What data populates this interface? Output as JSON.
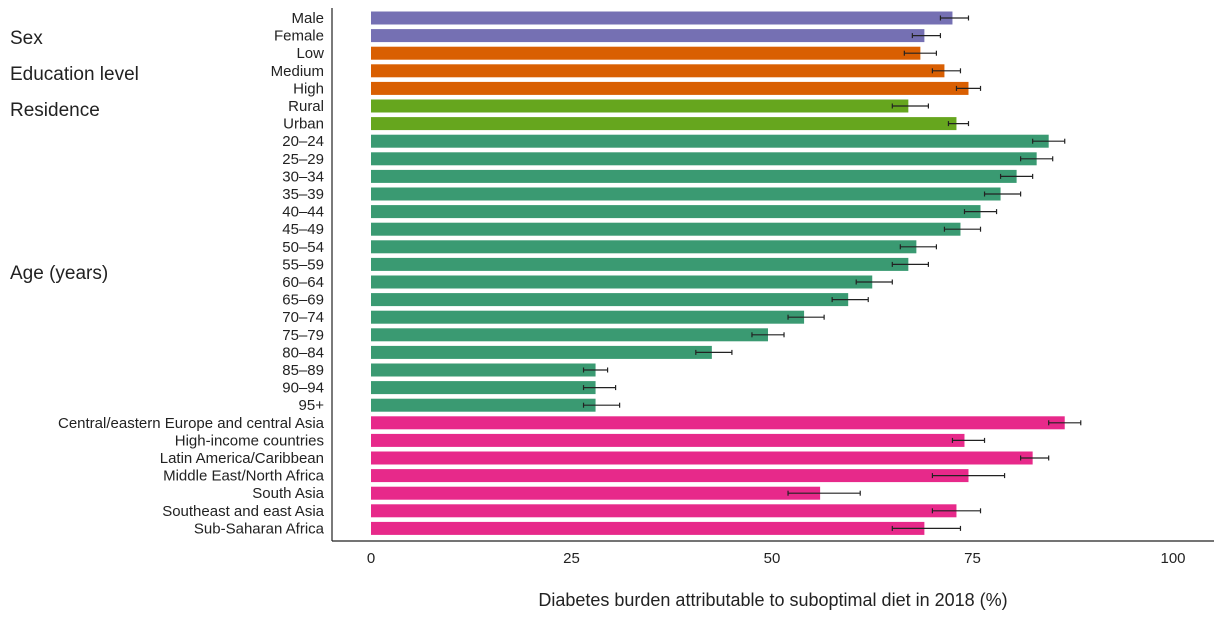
{
  "chart_data": {
    "type": "bar",
    "orientation": "horizontal",
    "xlabel": "Diabetes burden attributable to suboptimal diet in 2018 (%)",
    "xlim": [
      0,
      100
    ],
    "xticks": [
      0,
      25,
      50,
      75,
      100
    ],
    "grid": false,
    "groups": [
      {
        "label": "Sex",
        "color": "#7570b3",
        "items": [
          {
            "category": "Male",
            "value": 72.5,
            "err_low": 71.0,
            "err_high": 74.5
          },
          {
            "category": "Female",
            "value": 69.0,
            "err_low": 67.5,
            "err_high": 71.0
          }
        ]
      },
      {
        "label": "Education level",
        "color": "#d95f02",
        "items": [
          {
            "category": "Low",
            "value": 68.5,
            "err_low": 66.5,
            "err_high": 70.5
          },
          {
            "category": "Medium",
            "value": 71.5,
            "err_low": 70.0,
            "err_high": 73.5
          },
          {
            "category": "High",
            "value": 74.5,
            "err_low": 73.0,
            "err_high": 76.0
          }
        ]
      },
      {
        "label": "Residence",
        "color": "#66a61e",
        "items": [
          {
            "category": "Rural",
            "value": 67.0,
            "err_low": 65.0,
            "err_high": 69.5
          },
          {
            "category": "Urban",
            "value": 73.0,
            "err_low": 72.0,
            "err_high": 74.5
          }
        ]
      },
      {
        "label": "Age (years)",
        "color": "#3a9a72",
        "items": [
          {
            "category": "20–24",
            "value": 84.5,
            "err_low": 82.5,
            "err_high": 86.5
          },
          {
            "category": "25–29",
            "value": 83.0,
            "err_low": 81.0,
            "err_high": 85.0
          },
          {
            "category": "30–34",
            "value": 80.5,
            "err_low": 78.5,
            "err_high": 82.5
          },
          {
            "category": "35–39",
            "value": 78.5,
            "err_low": 76.5,
            "err_high": 81.0
          },
          {
            "category": "40–44",
            "value": 76.0,
            "err_low": 74.0,
            "err_high": 78.0
          },
          {
            "category": "45–49",
            "value": 73.5,
            "err_low": 71.5,
            "err_high": 76.0
          },
          {
            "category": "50–54",
            "value": 68.0,
            "err_low": 66.0,
            "err_high": 70.5
          },
          {
            "category": "55–59",
            "value": 67.0,
            "err_low": 65.0,
            "err_high": 69.5
          },
          {
            "category": "60–64",
            "value": 62.5,
            "err_low": 60.5,
            "err_high": 65.0
          },
          {
            "category": "65–69",
            "value": 59.5,
            "err_low": 57.5,
            "err_high": 62.0
          },
          {
            "category": "70–74",
            "value": 54.0,
            "err_low": 52.0,
            "err_high": 56.5
          },
          {
            "category": "75–79",
            "value": 49.5,
            "err_low": 47.5,
            "err_high": 51.5
          },
          {
            "category": "80–84",
            "value": 42.5,
            "err_low": 40.5,
            "err_high": 45.0
          },
          {
            "category": "85–89",
            "value": 28.0,
            "err_low": 26.5,
            "err_high": 29.5
          },
          {
            "category": "90–94",
            "value": 28.0,
            "err_low": 26.5,
            "err_high": 30.5
          },
          {
            "category": "95+",
            "value": 28.0,
            "err_low": 26.5,
            "err_high": 31.0
          }
        ]
      },
      {
        "label": "",
        "color": "#e7298a",
        "items": [
          {
            "category": "Central/eastern Europe and central Asia",
            "value": 86.5,
            "err_low": 84.5,
            "err_high": 88.5
          },
          {
            "category": "High-income countries",
            "value": 74.0,
            "err_low": 72.5,
            "err_high": 76.5
          },
          {
            "category": "Latin America/Caribbean",
            "value": 82.5,
            "err_low": 81.0,
            "err_high": 84.5
          },
          {
            "category": "Middle East/North Africa",
            "value": 74.5,
            "err_low": 70.0,
            "err_high": 79.0
          },
          {
            "category": "South Asia",
            "value": 56.0,
            "err_low": 52.0,
            "err_high": 61.0
          },
          {
            "category": "Southeast and east Asia",
            "value": 73.0,
            "err_low": 70.0,
            "err_high": 76.0
          },
          {
            "category": "Sub-Saharan Africa",
            "value": 69.0,
            "err_low": 65.0,
            "err_high": 73.5
          }
        ]
      }
    ]
  }
}
